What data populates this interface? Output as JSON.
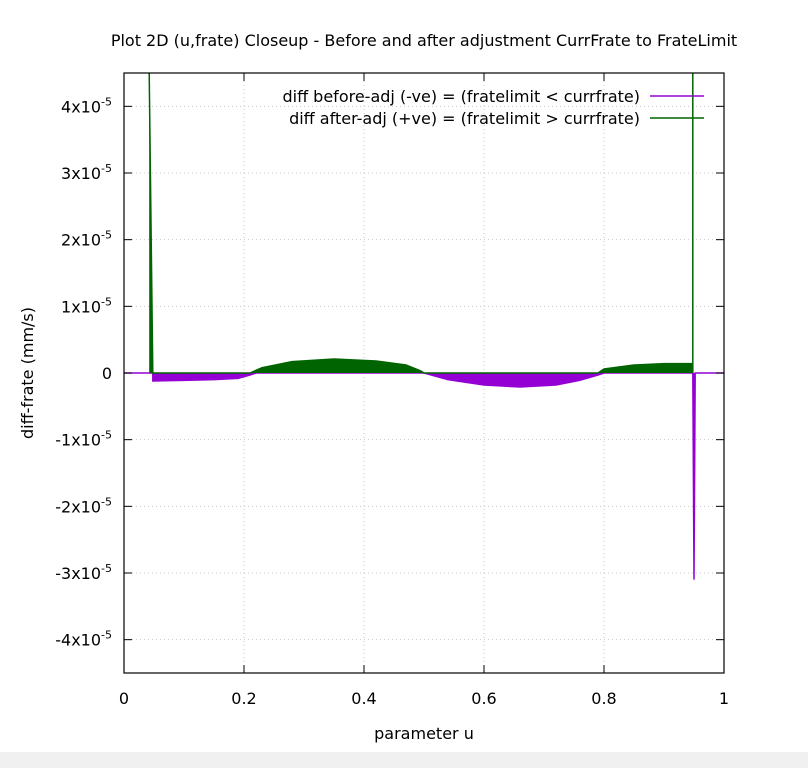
{
  "chart_data": {
    "type": "line",
    "title": "Plot 2D (u,frate) Closeup - Before and after adjustment CurrFrate to FrateLimit",
    "xlabel": "parameter u",
    "ylabel": "diff-frate (mm/s)",
    "xlim": [
      0,
      1
    ],
    "ylim": [
      -4.5e-05,
      4.5e-05
    ],
    "x_ticks": [
      0,
      0.2,
      0.4,
      0.6,
      0.8,
      1
    ],
    "x_tick_labels": [
      "0",
      "0.2",
      "0.4",
      "0.6",
      "0.8",
      "1"
    ],
    "y_ticks": [
      {
        "value": 4e-05,
        "mant": "4x10",
        "exp": "-5"
      },
      {
        "value": 3e-05,
        "mant": "3x10",
        "exp": "-5"
      },
      {
        "value": 2e-05,
        "mant": "2x10",
        "exp": "-5"
      },
      {
        "value": 1e-05,
        "mant": "1x10",
        "exp": "-5"
      },
      {
        "value": 0,
        "mant": "0",
        "exp": ""
      },
      {
        "value": -1e-05,
        "mant": "-1x10",
        "exp": "-5"
      },
      {
        "value": -2e-05,
        "mant": "-2x10",
        "exp": "-5"
      },
      {
        "value": -3e-05,
        "mant": "-3x10",
        "exp": "-5"
      },
      {
        "value": -4e-05,
        "mant": "-4x10",
        "exp": "-5"
      }
    ],
    "grid": true,
    "legend_position": "top-right",
    "series": [
      {
        "name": "diff before-adj (-ve) = (fratelimit < currfrate)",
        "color": "#9400d3",
        "style": "band",
        "points": [
          [
            0.0,
            0.0
          ],
          [
            0.048,
            0.0
          ],
          [
            0.048,
            -1.2e-06
          ],
          [
            0.1,
            -1.1e-06
          ],
          [
            0.15,
            -1e-06
          ],
          [
            0.19,
            -8e-07
          ],
          [
            0.21,
            -3e-07
          ],
          [
            0.22,
            0.0
          ],
          [
            0.5,
            0.0
          ],
          [
            0.54,
            -1e-06
          ],
          [
            0.6,
            -1.8e-06
          ],
          [
            0.66,
            -2.1e-06
          ],
          [
            0.72,
            -1.8e-06
          ],
          [
            0.76,
            -1.1e-06
          ],
          [
            0.79,
            -3e-07
          ],
          [
            0.8,
            0.0
          ],
          [
            0.948,
            0.0
          ],
          [
            0.95,
            -3.1e-05
          ],
          [
            0.952,
            0.0
          ],
          [
            1.0,
            0.0
          ]
        ]
      },
      {
        "name": "diff after-adj (+ve) = (fratelimit > currfrate)",
        "color": "#006400",
        "style": "band",
        "points": [
          [
            0.042,
            4.5e-05
          ],
          [
            0.048,
            0.0
          ],
          [
            0.21,
            0.0
          ],
          [
            0.23,
            8e-07
          ],
          [
            0.28,
            1.7e-06
          ],
          [
            0.35,
            2.1e-06
          ],
          [
            0.42,
            1.8e-06
          ],
          [
            0.47,
            1.2e-06
          ],
          [
            0.495,
            3e-07
          ],
          [
            0.5,
            0.0
          ],
          [
            0.79,
            0.0
          ],
          [
            0.8,
            6e-07
          ],
          [
            0.85,
            1.2e-06
          ],
          [
            0.9,
            1.4e-06
          ],
          [
            0.946,
            1.4e-06
          ],
          [
            0.948,
            0.0
          ],
          [
            0.948,
            4.5e-05
          ]
        ]
      }
    ]
  }
}
